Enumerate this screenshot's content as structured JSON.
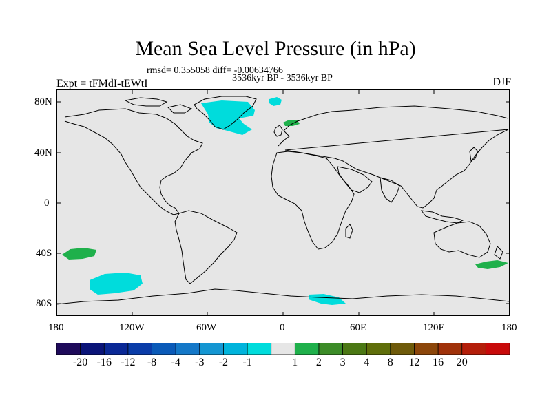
{
  "header": {
    "title": "Mean Sea Level Pressure (in hPa)",
    "stats": "rmsd= 0.355058 diff= -0.00634766",
    "period": "3536kyr BP - 3536kyr BP",
    "experiment": "Expt = tFMdI-tEWtI",
    "season": "DJF"
  },
  "map": {
    "ocean_color": "#e6e6e6",
    "coast_color": "#000000",
    "lat_labels": [
      "80N",
      "40N",
      "0",
      "40S",
      "80S"
    ],
    "lon_labels": [
      "180",
      "120W",
      "60W",
      "0",
      "60E",
      "120E",
      "180"
    ],
    "regions": [
      {
        "name": "north-atlantic-anomaly",
        "level": "-1",
        "color": "#00dcdc"
      },
      {
        "name": "iceland-anomaly",
        "level": "-1",
        "color": "#00dcdc"
      },
      {
        "name": "scandinavia-anomaly",
        "level": "1",
        "color": "#1fb04b"
      },
      {
        "name": "south-pacific-west-anomaly",
        "level": "1",
        "color": "#1fb04b"
      },
      {
        "name": "south-pacific-anomaly",
        "level": "-1",
        "color": "#00dcdc"
      },
      {
        "name": "southern-ocean-anomaly",
        "level": "-1",
        "color": "#00dcdc"
      },
      {
        "name": "tasman-anomaly",
        "level": "1",
        "color": "#1fb04b"
      }
    ]
  },
  "colorbar": {
    "colors": [
      "#1e0a5a",
      "#0a1478",
      "#0a2896",
      "#0a3ca8",
      "#0a5ab8",
      "#1478c8",
      "#1496d2",
      "#00b4dc",
      "#00dcdc",
      "#e6e6e6",
      "#1fb04b",
      "#3c8c28",
      "#4b7814",
      "#5f6e0a",
      "#6e5a0a",
      "#8c460a",
      "#a0320a",
      "#b41e0a",
      "#c80a0a"
    ],
    "labels": [
      "-20",
      "-16",
      "-12",
      "-8",
      "-4",
      "-3",
      "-2",
      "-1",
      "1",
      "2",
      "3",
      "4",
      "8",
      "12",
      "16",
      "20"
    ]
  }
}
